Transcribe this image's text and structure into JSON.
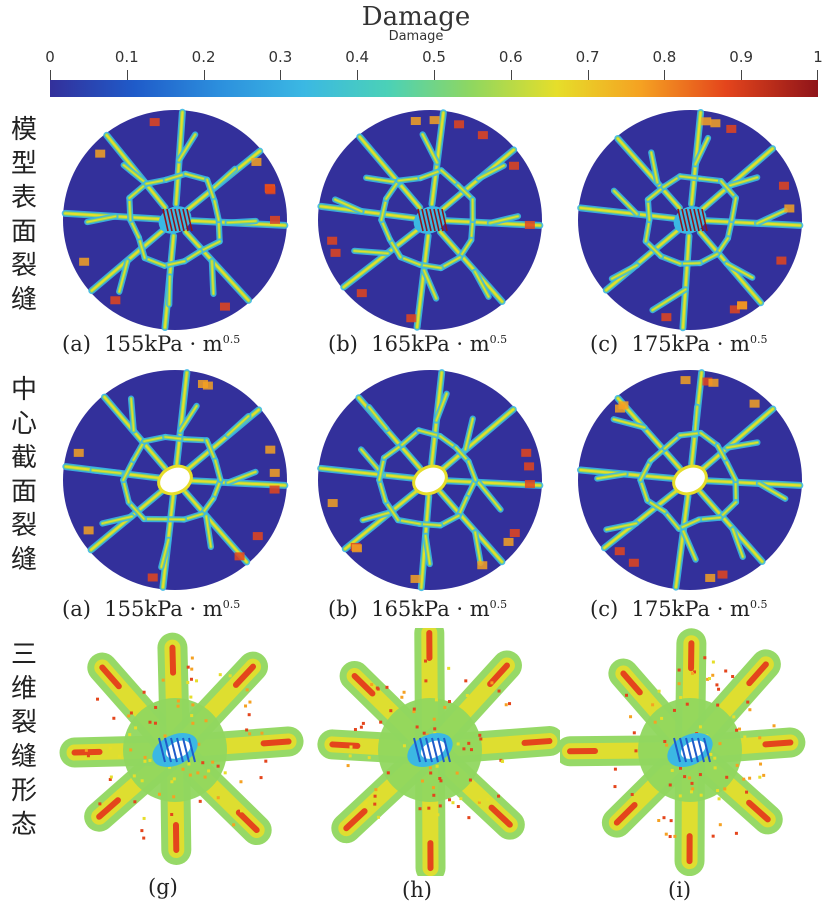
{
  "colorbar": {
    "title": "Damage",
    "subtitle": "Damage",
    "ticks": [
      "0",
      "0.1",
      "0.2",
      "0.3",
      "0.4",
      "0.5",
      "0.6",
      "0.7",
      "0.8",
      "0.9",
      "1"
    ],
    "colors": [
      "#33309b",
      "#1f5bc9",
      "#2c8fdd",
      "#3bb8e3",
      "#4bd1b7",
      "#90d75f",
      "#e6de2a",
      "#f5a122",
      "#e4451c",
      "#8f1419"
    ]
  },
  "rows": [
    {
      "label_chars": [
        "模",
        "型",
        "表",
        "面",
        "裂",
        "缝"
      ],
      "captions": [
        {
          "prefix": "(a)",
          "value": "155kPa · m",
          "exp": "0.5"
        },
        {
          "prefix": "(b)",
          "value": "165kPa · m",
          "exp": "0.5"
        },
        {
          "prefix": "(c)",
          "value": "175kPa · m",
          "exp": "0.5"
        }
      ]
    },
    {
      "label_chars": [
        "中",
        "心",
        "截",
        "面",
        "裂",
        "缝"
      ],
      "captions": [
        {
          "prefix": "(a)",
          "value": "155kPa · m",
          "exp": "0.5"
        },
        {
          "prefix": "(b)",
          "value": "165kPa · m",
          "exp": "0.5"
        },
        {
          "prefix": "(c)",
          "value": "175kPa · m",
          "exp": "0.5"
        }
      ]
    },
    {
      "label_chars": [
        "三",
        "维",
        "裂",
        "缝",
        "形",
        "态"
      ],
      "captions": [
        {
          "prefix": "(g)"
        },
        {
          "prefix": "(h)"
        },
        {
          "prefix": "(i)"
        }
      ]
    }
  ]
}
